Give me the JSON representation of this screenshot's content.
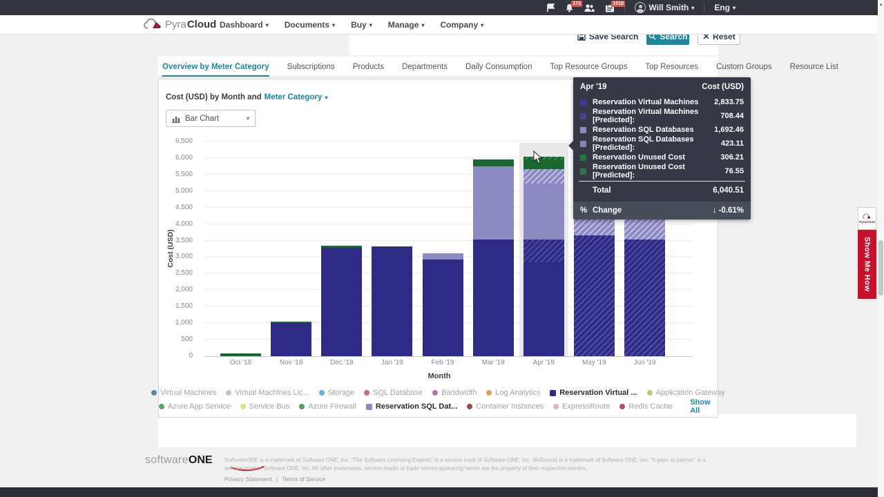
{
  "colors": {
    "accent": "#1b87a2",
    "topbar_bg": "#33353e",
    "badge_red": "#d9534f",
    "brand_red": "#c8102e",
    "tooltip_bg": "#363945",
    "bar_blue": "#2e2a85",
    "bar_purple": "#8d89c3",
    "bar_green": "#17682f"
  },
  "topbar": {
    "user": "Will Smith",
    "language": "Eng",
    "notification_count": "172",
    "inbox_count": "1018"
  },
  "navbar": {
    "brand_pyra": "Pyra",
    "brand_cloud": "Cloud",
    "menus": [
      "Dashboard",
      "Documents",
      "Buy",
      "Manage",
      "Company"
    ]
  },
  "search_actions": {
    "save": "Save Search",
    "search": "Search",
    "reset": "Reset"
  },
  "tabs": {
    "active_index": 0,
    "items": [
      "Overview by Meter Category",
      "Subscriptions",
      "Products",
      "Departments",
      "Daily Consumption",
      "Top Resource Groups",
      "Top Resources",
      "Custom Groups",
      "Resource List"
    ]
  },
  "panel": {
    "title_prefix": "Cost (USD) by Month and",
    "title_link": "Meter Category",
    "chart_type": "Bar Chart"
  },
  "chart_data": {
    "type": "bar",
    "stacked": true,
    "title": "Cost (USD) by Month and Meter Category",
    "xlabel": "Month",
    "ylabel": "Cost (USD)",
    "ylim": [
      0,
      6500
    ],
    "ytick_step": 500,
    "grid": true,
    "categories": [
      "Oct '18",
      "Nov '18",
      "Dec '18",
      "Jan '19",
      "Feb '19",
      "Mar '19",
      "Apr '19",
      "May '19",
      "Jun '19"
    ],
    "highlighted_category": "Apr '19",
    "series": [
      {
        "name": "Reservation Virtual Machines",
        "color": "#2e2a85",
        "hatch": "#524ea0",
        "predicted": false,
        "values": [
          0,
          1005,
          3280,
          3325,
          2925,
          3535,
          2833.75,
          0,
          0
        ]
      },
      {
        "name": "Reservation Virtual Machines [Predicted]",
        "color": "#2e2a85",
        "hatch": "#524ea0",
        "predicted": true,
        "values": [
          0,
          0,
          0,
          0,
          0,
          0,
          708.44,
          3660,
          3535
        ]
      },
      {
        "name": "Reservation SQL Databases",
        "color": "#8d89c3",
        "hatch": "#c9c6e4",
        "predicted": false,
        "values": [
          0,
          0,
          0,
          0,
          190,
          2215,
          1692.46,
          0,
          0
        ]
      },
      {
        "name": "Reservation SQL Databases [Predicted]",
        "color": "#8d89c3",
        "hatch": "#c9c6e4",
        "predicted": true,
        "values": [
          0,
          0,
          0,
          0,
          0,
          0,
          423.11,
          605,
          710
        ]
      },
      {
        "name": "Reservation Unused Cost",
        "color": "#17682f",
        "hatch": "#3f8f5c",
        "predicted": false,
        "values": [
          85,
          40,
          65,
          0,
          0,
          210,
          306.21,
          0,
          0
        ]
      },
      {
        "name": "Reservation Unused Cost [Predicted]",
        "color": "#17682f",
        "hatch": "#3f8f5c",
        "predicted": true,
        "values": [
          0,
          0,
          0,
          0,
          0,
          0,
          76.55,
          0,
          0
        ]
      }
    ]
  },
  "tooltip": {
    "title": "Apr '19",
    "header_right": "Cost (USD)",
    "rows": [
      {
        "label": "Reservation Virtual Machines",
        "value": "2,833.75",
        "color": "#3c38a0",
        "predicted": false
      },
      {
        "label": "Reservation Virtual Machines [Predicted]:",
        "value": "708.44",
        "color": "#4b48a9",
        "predicted": true
      },
      {
        "label": "Reservation SQL Databases",
        "value": "1,692.46",
        "color": "#8d89c3",
        "predicted": false
      },
      {
        "label": "Reservation SQL Databases [Predicted]:",
        "value": "423.11",
        "color": "#9b98cd",
        "predicted": true
      },
      {
        "label": "Reservation Unused Cost",
        "value": "306.21",
        "color": "#1d7a39",
        "predicted": false
      },
      {
        "label": "Reservation Unused Cost [Predicted]:",
        "value": "76.55",
        "color": "#2b8a49",
        "predicted": true
      }
    ],
    "total_label": "Total",
    "total_value": "6,040.51",
    "change_prefix": "%",
    "change_label": "Change",
    "change_arrow": "↓",
    "change_value": "-0.61%"
  },
  "legend": {
    "rows": [
      [
        {
          "label": "Virtual Machines",
          "color": "#5b87b7",
          "active": false
        },
        {
          "label": "Virtual Machines Lic...",
          "color": "#b7c6d2",
          "active": false
        },
        {
          "label": "Storage",
          "color": "#66b2d6",
          "active": false
        },
        {
          "label": "SQL Database",
          "color": "#d35f97",
          "active": false
        },
        {
          "label": "Bandwidth",
          "color": "#a87ba3",
          "active": false
        },
        {
          "label": "Log Analytics",
          "color": "#d9a55e",
          "active": false
        },
        {
          "label": "Reservation Virtual ...",
          "color": "#2e2a85",
          "active": true
        },
        {
          "label": "Application Gateway",
          "color": "#b9ca75",
          "active": false
        }
      ],
      [
        {
          "label": "Azure App Service",
          "color": "#55a56b",
          "active": false
        },
        {
          "label": "Service Bus",
          "color": "#e3e084",
          "active": false
        },
        {
          "label": "Azure Firewall",
          "color": "#53a05e",
          "active": false
        },
        {
          "label": "Reservation SQL Dat...",
          "color": "#8d89c3",
          "active": true
        },
        {
          "label": "Container Instances",
          "color": "#a2454f",
          "active": false
        },
        {
          "label": "ExpressRoute",
          "color": "#e6afc0",
          "active": false
        },
        {
          "label": "Redis Cache",
          "color": "#bf4579",
          "active": false
        }
      ]
    ],
    "show_all": "Show All"
  },
  "widgets": {
    "show_me_how": "Show Me How",
    "mini_brand": "PyraCloud"
  },
  "footer": {
    "logo_light": "software",
    "logo_bold": "ONE",
    "trademark": "SoftwareONE is a trademark of Software ONE, Inc. “The Software Licensing Experts” is a service mark of Software ONE, Inc. VARassist is a trademark of Software ONE, Inc. “It pays to partner” is a service mark of Software ONE, Inc. All other trademarks, service marks or trade names appearing herein are the property of their respective owners.",
    "link_privacy": "Privacy Statement",
    "separator": "|",
    "link_terms": "Terms of Service"
  }
}
